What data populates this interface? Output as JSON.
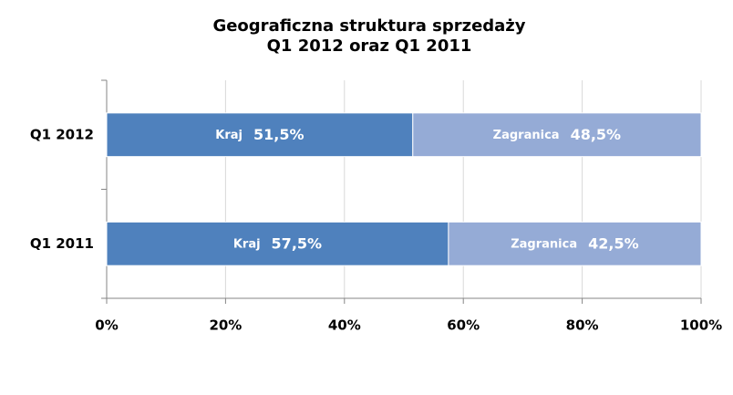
{
  "chart_data": {
    "type": "stacked-bar-horizontal",
    "title": "Geograficzna struktura sprzedaży",
    "subtitle": "Q1 2012 oraz Q1 2011",
    "categories": [
      "Q1 2012",
      "Q1 2011"
    ],
    "series": [
      {
        "name": "Kraj",
        "color": "#4f81bd",
        "values": [
          51.5,
          57.5
        ],
        "value_labels": [
          "51,5%",
          "57,5%"
        ]
      },
      {
        "name": "Zagranica",
        "color": "#95abd6",
        "values": [
          48.5,
          42.5
        ],
        "value_labels": [
          "48,5%",
          "42,5%"
        ]
      }
    ],
    "xlim": [
      0,
      100
    ],
    "xticks": [
      {
        "value": 0,
        "label": "0%"
      },
      {
        "value": 20,
        "label": "20%"
      },
      {
        "value": 40,
        "label": "40%"
      },
      {
        "value": 60,
        "label": "60%"
      },
      {
        "value": 80,
        "label": "80%"
      },
      {
        "value": 100,
        "label": "100%"
      }
    ],
    "grid": true
  }
}
